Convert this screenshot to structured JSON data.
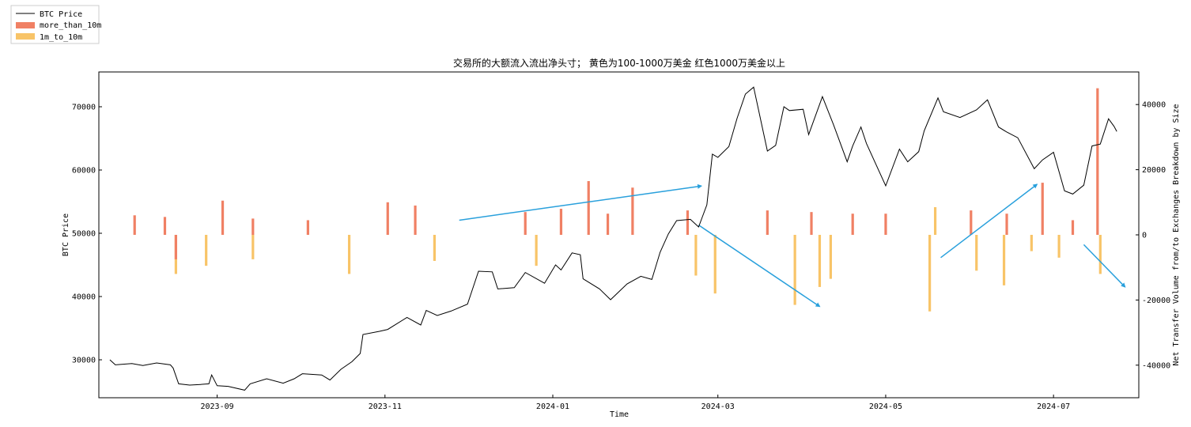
{
  "chart_data": {
    "type": "bar+line",
    "title": "交易所的大额流入流出净头寸； 黄色为100-1000万美金 红色1000万美金以上",
    "xlabel": "Time",
    "ylabel_left": "BTC Price",
    "ylabel_right": "Net Transfer Volume from/to Exchanges Breakdown by Size",
    "x_range": [
      "2023-07-20",
      "2024-08-01"
    ],
    "ylim_left": [
      24000,
      75500
    ],
    "ylim_right": [
      -50000,
      50000
    ],
    "x_ticks": [
      "2023-09",
      "2023-11",
      "2024-01",
      "2024-03",
      "2024-05",
      "2024-07"
    ],
    "y_ticks_left": [
      30000,
      40000,
      50000,
      60000,
      70000
    ],
    "y_ticks_right": [
      -40000,
      -20000,
      0,
      20000,
      40000
    ],
    "legend_position": "top-left",
    "series": [
      {
        "name": "BTC Price",
        "type": "line",
        "color": "#000000",
        "points": [
          [
            "2023-07-24",
            30000
          ],
          [
            "2023-07-26",
            29200
          ],
          [
            "2023-08-01",
            29400
          ],
          [
            "2023-08-05",
            29100
          ],
          [
            "2023-08-10",
            29500
          ],
          [
            "2023-08-15",
            29200
          ],
          [
            "2023-08-16",
            28700
          ],
          [
            "2023-08-18",
            26200
          ],
          [
            "2023-08-22",
            26000
          ],
          [
            "2023-08-26",
            26100
          ],
          [
            "2023-08-29",
            26200
          ],
          [
            "2023-08-30",
            27600
          ],
          [
            "2023-09-01",
            25900
          ],
          [
            "2023-09-05",
            25800
          ],
          [
            "2023-09-11",
            25200
          ],
          [
            "2023-09-13",
            26200
          ],
          [
            "2023-09-19",
            27000
          ],
          [
            "2023-09-25",
            26300
          ],
          [
            "2023-09-29",
            27000
          ],
          [
            "2023-10-02",
            27800
          ],
          [
            "2023-10-09",
            27600
          ],
          [
            "2023-10-12",
            26800
          ],
          [
            "2023-10-16",
            28500
          ],
          [
            "2023-10-20",
            29700
          ],
          [
            "2023-10-23",
            31000
          ],
          [
            "2023-10-24",
            34000
          ],
          [
            "2023-10-30",
            34500
          ],
          [
            "2023-11-02",
            34800
          ],
          [
            "2023-11-09",
            36700
          ],
          [
            "2023-11-14",
            35500
          ],
          [
            "2023-11-16",
            37800
          ],
          [
            "2023-11-20",
            37000
          ],
          [
            "2023-11-25",
            37700
          ],
          [
            "2023-12-01",
            38800
          ],
          [
            "2023-12-05",
            44000
          ],
          [
            "2023-12-10",
            43900
          ],
          [
            "2023-12-12",
            41200
          ],
          [
            "2023-12-18",
            41400
          ],
          [
            "2023-12-22",
            43800
          ],
          [
            "2023-12-29",
            42100
          ],
          [
            "2024-01-02",
            45000
          ],
          [
            "2024-01-04",
            44200
          ],
          [
            "2024-01-08",
            46900
          ],
          [
            "2024-01-11",
            46600
          ],
          [
            "2024-01-12",
            42800
          ],
          [
            "2024-01-18",
            41200
          ],
          [
            "2024-01-22",
            39500
          ],
          [
            "2024-01-28",
            42000
          ],
          [
            "2024-02-02",
            43200
          ],
          [
            "2024-02-06",
            42700
          ],
          [
            "2024-02-09",
            47000
          ],
          [
            "2024-02-12",
            49900
          ],
          [
            "2024-02-15",
            52000
          ],
          [
            "2024-02-20",
            52200
          ],
          [
            "2024-02-23",
            51000
          ],
          [
            "2024-02-26",
            54500
          ],
          [
            "2024-02-28",
            62500
          ],
          [
            "2024-03-01",
            62000
          ],
          [
            "2024-03-05",
            63700
          ],
          [
            "2024-03-08",
            68200
          ],
          [
            "2024-03-11",
            72000
          ],
          [
            "2024-03-14",
            73100
          ],
          [
            "2024-03-19",
            63000
          ],
          [
            "2024-03-22",
            63900
          ],
          [
            "2024-03-25",
            70000
          ],
          [
            "2024-03-27",
            69400
          ],
          [
            "2024-04-01",
            69600
          ],
          [
            "2024-04-03",
            65600
          ],
          [
            "2024-04-08",
            71600
          ],
          [
            "2024-04-12",
            67200
          ],
          [
            "2024-04-17",
            61300
          ],
          [
            "2024-04-19",
            63800
          ],
          [
            "2024-04-22",
            66800
          ],
          [
            "2024-04-24",
            64200
          ],
          [
            "2024-05-01",
            57500
          ],
          [
            "2024-05-06",
            63300
          ],
          [
            "2024-05-09",
            61300
          ],
          [
            "2024-05-13",
            62900
          ],
          [
            "2024-05-15",
            66200
          ],
          [
            "2024-05-20",
            71400
          ],
          [
            "2024-05-22",
            69200
          ],
          [
            "2024-05-28",
            68300
          ],
          [
            "2024-06-03",
            69500
          ],
          [
            "2024-06-07",
            71100
          ],
          [
            "2024-06-11",
            66800
          ],
          [
            "2024-06-14",
            66000
          ],
          [
            "2024-06-18",
            65100
          ],
          [
            "2024-06-24",
            60200
          ],
          [
            "2024-06-27",
            61600
          ],
          [
            "2024-07-01",
            62800
          ],
          [
            "2024-07-05",
            56700
          ],
          [
            "2024-07-08",
            56200
          ],
          [
            "2024-07-12",
            57600
          ],
          [
            "2024-07-15",
            63800
          ],
          [
            "2024-07-18",
            64100
          ],
          [
            "2024-07-21",
            68100
          ],
          [
            "2024-07-23",
            66900
          ],
          [
            "2024-07-24",
            66100
          ]
        ]
      },
      {
        "name": "more_than_10m",
        "type": "bar",
        "color": "#f08064",
        "points": [
          [
            "2023-08-02",
            6000
          ],
          [
            "2023-08-13",
            5500
          ],
          [
            "2023-08-17",
            -7500
          ],
          [
            "2023-09-03",
            10500
          ],
          [
            "2023-09-14",
            5000
          ],
          [
            "2023-10-04",
            4500
          ],
          [
            "2023-11-02",
            10000
          ],
          [
            "2023-11-12",
            9000
          ],
          [
            "2023-12-22",
            7000
          ],
          [
            "2024-01-04",
            8000
          ],
          [
            "2024-01-14",
            16500
          ],
          [
            "2024-01-21",
            6500
          ],
          [
            "2024-01-30",
            14500
          ],
          [
            "2024-02-19",
            7500
          ],
          [
            "2024-03-19",
            7500
          ],
          [
            "2024-04-04",
            7000
          ],
          [
            "2024-04-19",
            6500
          ],
          [
            "2024-05-01",
            6500
          ],
          [
            "2024-06-01",
            7500
          ],
          [
            "2024-06-14",
            6500
          ],
          [
            "2024-06-27",
            16000
          ],
          [
            "2024-07-08",
            4500
          ],
          [
            "2024-07-17",
            45000
          ]
        ]
      },
      {
        "name": "1m_to_10m",
        "type": "bar",
        "color": "#f8c468",
        "points": [
          [
            "2023-08-17",
            -12000
          ],
          [
            "2023-08-28",
            -9500
          ],
          [
            "2023-09-14",
            -7500
          ],
          [
            "2023-10-19",
            -12000
          ],
          [
            "2023-11-19",
            -8000
          ],
          [
            "2023-12-26",
            -9500
          ],
          [
            "2024-02-22",
            -12500
          ],
          [
            "2024-02-29",
            -18000
          ],
          [
            "2024-03-29",
            -21500
          ],
          [
            "2024-04-07",
            -16000
          ],
          [
            "2024-04-11",
            -13500
          ],
          [
            "2024-05-17",
            -23500
          ],
          [
            "2024-05-19",
            8500
          ],
          [
            "2024-06-03",
            -11000
          ],
          [
            "2024-06-13",
            -15500
          ],
          [
            "2024-06-23",
            -5000
          ],
          [
            "2024-07-03",
            -7000
          ],
          [
            "2024-07-18",
            -12000
          ]
        ]
      }
    ],
    "annotations": [
      {
        "type": "arrow",
        "color": "#29a0dc",
        "from": [
          "2023-11-28",
          4500
        ],
        "to": [
          "2024-02-24",
          15000
        ]
      },
      {
        "type": "arrow",
        "color": "#29a0dc",
        "from": [
          "2024-02-23",
          3000
        ],
        "to": [
          "2024-04-07",
          -22000
        ]
      },
      {
        "type": "arrow",
        "color": "#29a0dc",
        "from": [
          "2024-05-21",
          -7000
        ],
        "to": [
          "2024-06-25",
          15500
        ]
      },
      {
        "type": "arrow",
        "color": "#29a0dc",
        "from": [
          "2024-07-12",
          -3000
        ],
        "to": [
          "2024-07-27",
          -16000
        ]
      }
    ]
  }
}
